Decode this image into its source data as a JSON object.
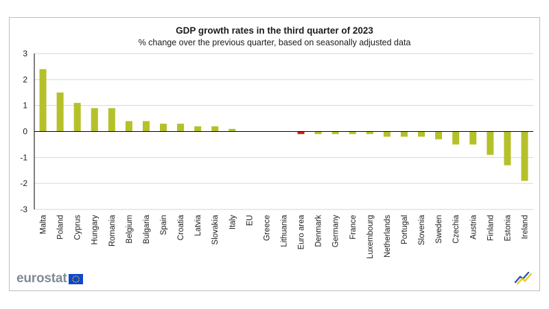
{
  "chart_data": {
    "type": "bar",
    "title": "GDP growth rates in the third quarter of 2023",
    "subtitle": "% change over the previous quarter, based on seasonally adjusted data",
    "categories": [
      "Malta",
      "Poland",
      "Cyprus",
      "Hungary",
      "Romania",
      "Belgium",
      "Bulgaria",
      "Spain",
      "Croatia",
      "Latvia",
      "Slovakia",
      "Italy",
      "EU",
      "Greece",
      "Lithuania",
      "Euro area",
      "Denmark",
      "Germany",
      "France",
      "Luxembourg",
      "Netherlands",
      "Portugal",
      "Slovenia",
      "Sweden",
      "Czechia",
      "Austria",
      "Finland",
      "Estonia",
      "Ireland"
    ],
    "values": [
      2.4,
      1.5,
      1.1,
      0.9,
      0.9,
      0.4,
      0.4,
      0.3,
      0.3,
      0.2,
      0.2,
      0.1,
      0.0,
      0.0,
      0.0,
      -0.1,
      -0.1,
      -0.1,
      -0.1,
      -0.1,
      -0.2,
      -0.2,
      -0.2,
      -0.3,
      -0.5,
      -0.5,
      -0.9,
      -1.3,
      -1.9
    ],
    "highlight": [
      "Euro area"
    ],
    "ylim": [
      -3,
      3
    ],
    "yticks": [
      3,
      2,
      1,
      0,
      -1,
      -2,
      -3
    ],
    "grid": true,
    "legend": "none"
  },
  "colors": {
    "bar": "#b5c12a",
    "highlight_bar": "#cc1f1f",
    "grid": "#d4d4d4",
    "axis": "#000000"
  },
  "branding": {
    "logo_text": "eurostat",
    "flag_icon": "eu-flag-icon",
    "corner_icon": "eurostat-chart-icon"
  }
}
